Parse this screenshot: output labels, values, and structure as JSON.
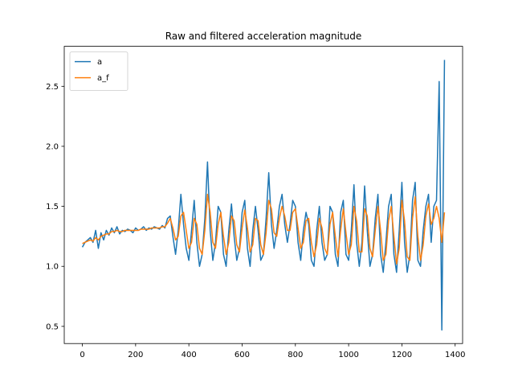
{
  "chart_data": {
    "type": "line",
    "title": "Raw and filtered acceleration magnitude",
    "x": [
      0,
      10,
      20,
      30,
      40,
      50,
      60,
      70,
      80,
      90,
      100,
      110,
      120,
      130,
      140,
      150,
      160,
      170,
      180,
      190,
      200,
      210,
      220,
      230,
      240,
      250,
      260,
      270,
      280,
      290,
      300,
      310,
      320,
      330,
      340,
      350,
      360,
      370,
      380,
      390,
      400,
      410,
      420,
      430,
      440,
      450,
      460,
      470,
      480,
      490,
      500,
      510,
      520,
      530,
      540,
      550,
      560,
      570,
      580,
      590,
      600,
      610,
      620,
      630,
      640,
      650,
      660,
      670,
      680,
      690,
      700,
      710,
      720,
      730,
      740,
      750,
      760,
      770,
      780,
      790,
      800,
      810,
      820,
      830,
      840,
      850,
      860,
      870,
      880,
      890,
      900,
      910,
      920,
      930,
      940,
      950,
      960,
      970,
      980,
      990,
      1000,
      1010,
      1020,
      1030,
      1040,
      1050,
      1060,
      1070,
      1080,
      1090,
      1100,
      1110,
      1120,
      1130,
      1140,
      1150,
      1160,
      1170,
      1180,
      1190,
      1200,
      1210,
      1220,
      1230,
      1240,
      1250,
      1260,
      1270,
      1280,
      1290,
      1300,
      1310,
      1320,
      1330,
      1340,
      1350,
      1360
    ],
    "series": [
      {
        "name": "a",
        "color": "#1f77b4",
        "values": [
          1.16,
          1.2,
          1.22,
          1.24,
          1.2,
          1.3,
          1.15,
          1.28,
          1.22,
          1.3,
          1.26,
          1.32,
          1.28,
          1.33,
          1.27,
          1.3,
          1.29,
          1.31,
          1.3,
          1.28,
          1.32,
          1.3,
          1.31,
          1.33,
          1.3,
          1.32,
          1.31,
          1.33,
          1.32,
          1.31,
          1.34,
          1.32,
          1.4,
          1.42,
          1.25,
          1.1,
          1.3,
          1.6,
          1.35,
          1.15,
          1.05,
          1.3,
          1.55,
          1.2,
          1.0,
          1.1,
          1.4,
          1.87,
          1.3,
          1.05,
          1.2,
          1.5,
          1.45,
          1.1,
          1.0,
          1.3,
          1.52,
          1.25,
          1.05,
          1.15,
          1.45,
          1.55,
          1.15,
          1.0,
          1.3,
          1.5,
          1.3,
          1.05,
          1.1,
          1.4,
          1.78,
          1.35,
          1.15,
          1.3,
          1.5,
          1.6,
          1.35,
          1.2,
          1.35,
          1.55,
          1.5,
          1.2,
          1.05,
          1.3,
          1.45,
          1.35,
          1.05,
          1.0,
          1.3,
          1.5,
          1.2,
          1.05,
          1.1,
          1.5,
          1.45,
          1.1,
          1.0,
          1.45,
          1.55,
          1.1,
          1.05,
          1.3,
          1.68,
          1.2,
          1.0,
          1.2,
          1.67,
          1.3,
          1.0,
          1.1,
          1.4,
          1.6,
          1.1,
          0.95,
          1.2,
          1.5,
          1.6,
          1.1,
          0.95,
          1.3,
          1.7,
          1.2,
          0.95,
          1.1,
          1.55,
          1.7,
          1.05,
          1.0,
          1.3,
          1.5,
          1.6,
          1.2,
          1.5,
          1.55,
          2.54,
          0.47,
          2.72
        ]
      },
      {
        "name": "a_f",
        "color": "#ff7f0e",
        "values": [
          1.19,
          1.2,
          1.21,
          1.22,
          1.21,
          1.24,
          1.22,
          1.25,
          1.26,
          1.27,
          1.27,
          1.29,
          1.29,
          1.3,
          1.29,
          1.29,
          1.3,
          1.3,
          1.3,
          1.3,
          1.3,
          1.3,
          1.31,
          1.31,
          1.31,
          1.31,
          1.32,
          1.32,
          1.32,
          1.32,
          1.33,
          1.33,
          1.36,
          1.4,
          1.32,
          1.22,
          1.25,
          1.42,
          1.45,
          1.3,
          1.15,
          1.2,
          1.4,
          1.35,
          1.15,
          1.1,
          1.3,
          1.6,
          1.45,
          1.2,
          1.15,
          1.35,
          1.45,
          1.25,
          1.1,
          1.2,
          1.42,
          1.38,
          1.18,
          1.12,
          1.32,
          1.47,
          1.32,
          1.12,
          1.18,
          1.4,
          1.38,
          1.18,
          1.1,
          1.28,
          1.55,
          1.48,
          1.28,
          1.25,
          1.4,
          1.5,
          1.42,
          1.3,
          1.3,
          1.45,
          1.48,
          1.32,
          1.15,
          1.2,
          1.38,
          1.4,
          1.2,
          1.08,
          1.18,
          1.4,
          1.32,
          1.15,
          1.1,
          1.35,
          1.45,
          1.25,
          1.08,
          1.3,
          1.48,
          1.28,
          1.1,
          1.18,
          1.5,
          1.38,
          1.12,
          1.12,
          1.48,
          1.42,
          1.15,
          1.08,
          1.3,
          1.5,
          1.3,
          1.05,
          1.1,
          1.38,
          1.5,
          1.25,
          1.02,
          1.15,
          1.55,
          1.38,
          1.08,
          1.05,
          1.4,
          1.58,
          1.25,
          1.05,
          1.18,
          1.42,
          1.52,
          1.35,
          1.4,
          1.5,
          1.4,
          1.2,
          1.45
        ]
      }
    ],
    "xlim": [
      -68,
      1428
    ],
    "ylim": [
      0.357,
      2.833
    ],
    "xticks": [
      0,
      200,
      400,
      600,
      800,
      1000,
      1200,
      1400
    ],
    "yticks": [
      0.5,
      {
        "value": 1,
        "label": "1.0"
      },
      1.5,
      {
        "value": 2,
        "label": "2.0"
      },
      2.5
    ],
    "legend": "upper left"
  }
}
